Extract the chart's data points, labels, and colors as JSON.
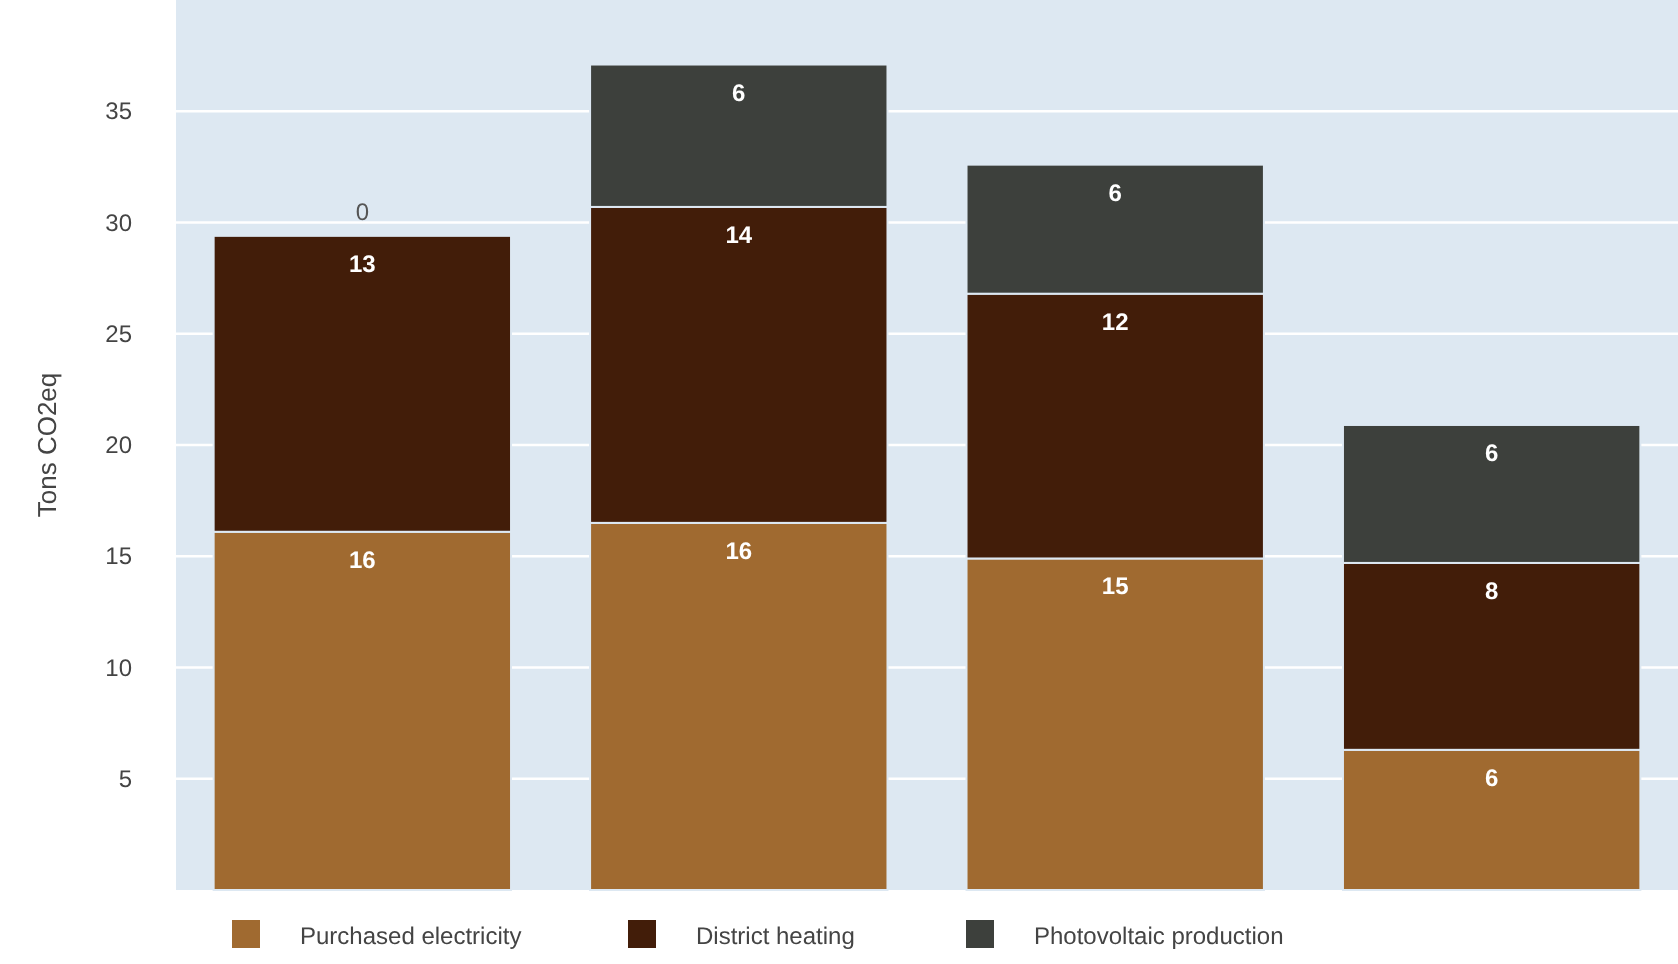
{
  "chart_data": {
    "type": "bar",
    "stacked": true,
    "ylabel": "Tons CO2eq",
    "categories": [
      null,
      null,
      null,
      null
    ],
    "series": [
      {
        "name": "Purchased electricity",
        "color": "#a06a30",
        "values": [
          16.1,
          16.5,
          14.9,
          6.3
        ],
        "value_labels": [
          "16",
          "16",
          "15",
          "6"
        ]
      },
      {
        "name": "District heating",
        "color": "#421d09",
        "values": [
          13.3,
          14.2,
          11.9,
          8.4
        ],
        "value_labels": [
          "13",
          "14",
          "12",
          "8"
        ]
      },
      {
        "name": "Photovoltaic production",
        "color": "#3d403c",
        "values": [
          0,
          6.4,
          5.8,
          6.2
        ],
        "value_labels": [
          "0",
          "6",
          "6",
          "6"
        ]
      }
    ],
    "ylim": [
      0,
      40
    ],
    "yticks": [
      5,
      10,
      15,
      20,
      25,
      30,
      35
    ],
    "grid": "y",
    "legend": "bottom"
  }
}
